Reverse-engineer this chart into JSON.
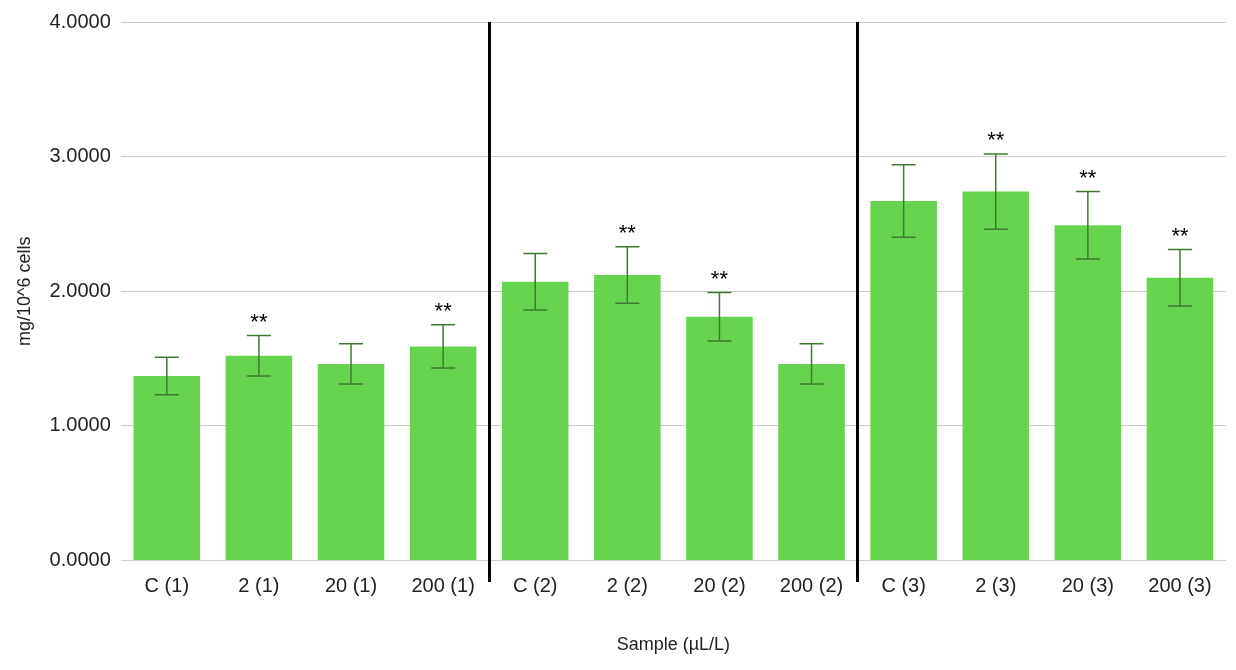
{
  "chart_data": {
    "type": "bar",
    "xlabel": "Sample (µL/L)",
    "ylabel": "mg/10^6 cells",
    "categories": [
      "C (1)",
      "2 (1)",
      "20 (1)",
      "200 (1)",
      "C (2)",
      "2 (2)",
      "20 (2)",
      "200 (2)",
      "C (3)",
      "2 (3)",
      "20 (3)",
      "200 (3)"
    ],
    "values": [
      1.37,
      1.52,
      1.46,
      1.59,
      2.07,
      2.12,
      1.81,
      1.46,
      2.67,
      2.74,
      2.49,
      2.1
    ],
    "errors": [
      0.14,
      0.15,
      0.15,
      0.16,
      0.21,
      0.21,
      0.18,
      0.15,
      0.27,
      0.28,
      0.25,
      0.21
    ],
    "color": "#66d44f",
    "ylim": [
      0,
      4
    ],
    "yticks": [
      {
        "value": 0,
        "label": "0.0000"
      },
      {
        "value": 1,
        "label": "1.0000"
      },
      {
        "value": 2,
        "label": "2.0000"
      },
      {
        "value": 3,
        "label": "3.0000"
      },
      {
        "value": 4,
        "label": "4.0000"
      }
    ],
    "grid": "y",
    "annotations": [
      {
        "text": "**",
        "x": "2 (1)",
        "y": 1.67
      },
      {
        "text": "**",
        "x": "200 (1)",
        "y": 1.75
      },
      {
        "text": "**",
        "x": "2 (2)",
        "y": 2.33
      },
      {
        "text": "**",
        "x": "20 (2)",
        "y": 1.99
      },
      {
        "text": "**",
        "x": "2 (3)",
        "y": 3.02
      },
      {
        "text": "**",
        "x": "20 (3)",
        "y": 2.74
      },
      {
        "text": "**",
        "x": "200 (3)",
        "y": 2.31
      }
    ]
  }
}
